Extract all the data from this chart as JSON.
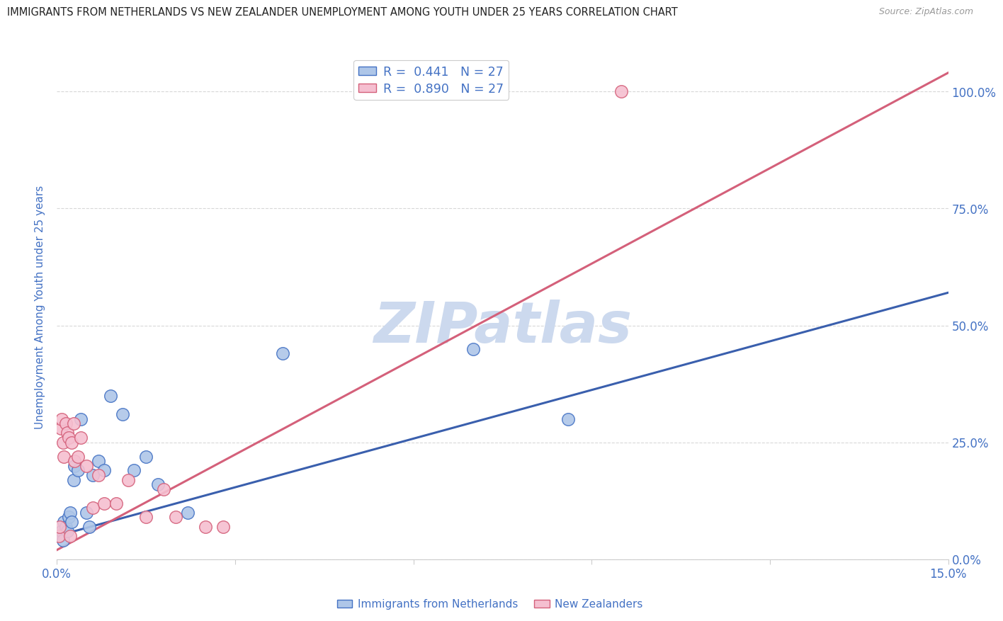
{
  "title": "IMMIGRANTS FROM NETHERLANDS VS NEW ZEALANDER UNEMPLOYMENT AMONG YOUTH UNDER 25 YEARS CORRELATION CHART",
  "source": "Source: ZipAtlas.com",
  "ylabel": "Unemployment Among Youth under 25 years",
  "legend_label1": "Immigrants from Netherlands",
  "legend_label2": "New Zealanders",
  "R1": "0.441",
  "N1": "27",
  "R2": "0.890",
  "N2": "27",
  "color_blue_fill": "#aec6e8",
  "color_blue_edge": "#4472C4",
  "color_pink_fill": "#f5bfd0",
  "color_pink_edge": "#d4607a",
  "color_blue_line": "#3a5fad",
  "color_pink_line": "#d4607a",
  "color_watermark": "#ccd9ee",
  "xlim": [
    0.0,
    15.0
  ],
  "ylim": [
    0.0,
    108.0
  ],
  "yticks_right": [
    0,
    25,
    50,
    75,
    100
  ],
  "ytick_labels_right": [
    "0.0%",
    "25.0%",
    "50.0%",
    "75.0%",
    "100.0%"
  ],
  "xticks": [
    0.0,
    3.0,
    6.0,
    9.0,
    12.0,
    15.0
  ],
  "blue_scatter_x": [
    0.05,
    0.08,
    0.1,
    0.12,
    0.15,
    0.18,
    0.2,
    0.22,
    0.25,
    0.28,
    0.3,
    0.35,
    0.4,
    0.5,
    0.55,
    0.6,
    0.7,
    0.8,
    0.9,
    1.1,
    1.3,
    1.5,
    1.7,
    2.2,
    3.8,
    7.0,
    8.6
  ],
  "blue_scatter_y": [
    5,
    6,
    4,
    8,
    7,
    6,
    9,
    10,
    8,
    17,
    20,
    19,
    30,
    10,
    7,
    18,
    21,
    19,
    35,
    31,
    19,
    22,
    16,
    10,
    44,
    45,
    30
  ],
  "pink_scatter_x": [
    0.03,
    0.05,
    0.07,
    0.08,
    0.1,
    0.12,
    0.15,
    0.18,
    0.2,
    0.22,
    0.25,
    0.28,
    0.3,
    0.35,
    0.4,
    0.5,
    0.6,
    0.7,
    0.8,
    1.0,
    1.2,
    1.5,
    1.8,
    2.0,
    2.5,
    2.8,
    9.5
  ],
  "pink_scatter_y": [
    5,
    7,
    28,
    30,
    25,
    22,
    29,
    27,
    26,
    5,
    25,
    29,
    21,
    22,
    26,
    20,
    11,
    18,
    12,
    12,
    17,
    9,
    15,
    9,
    7,
    7,
    100
  ],
  "blue_line_x0": 0.0,
  "blue_line_x1": 15.0,
  "blue_line_y0": 5.0,
  "blue_line_y1": 57.0,
  "pink_line_x0": 0.0,
  "pink_line_x1": 15.0,
  "pink_line_y0": 2.0,
  "pink_line_y1": 104.0,
  "background_color": "#ffffff",
  "grid_color": "#d8d8d8",
  "title_color": "#222222",
  "axis_label_color": "#4472C4",
  "watermark_text": "ZIPatlas"
}
